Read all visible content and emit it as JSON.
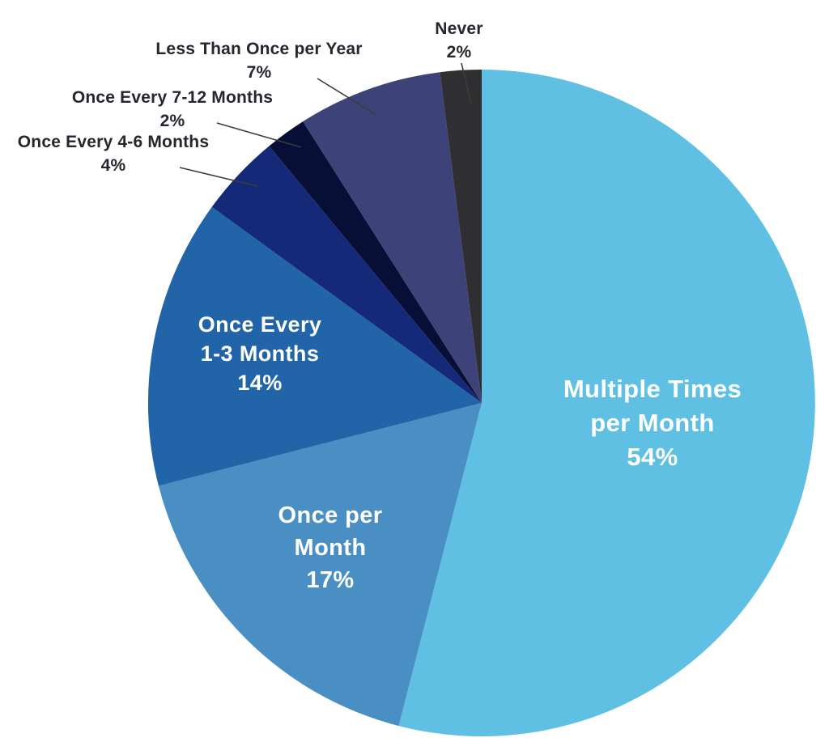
{
  "chart_data": {
    "type": "pie",
    "title": "",
    "direction": "clockwise",
    "start_angle_deg": 0,
    "legend": "none",
    "background_color": "#ffffff",
    "leader_line_color": "#3c3c3c",
    "text_colors": {
      "inside": "#ffffff",
      "outside": "#26262e"
    },
    "slices": [
      {
        "label": "Multiple Times per Month",
        "value": 54,
        "pct_label": "54%",
        "label_lines": [
          "Multiple Times",
          "per Month"
        ],
        "color": "#5fc0e3",
        "label_placement": "inside"
      },
      {
        "label": "Once per Month",
        "value": 17,
        "pct_label": "17%",
        "label_lines": [
          "Once per",
          "Month"
        ],
        "color": "#4a8fc4",
        "label_placement": "inside"
      },
      {
        "label": "Once Every 1-3 Months",
        "value": 14,
        "pct_label": "14%",
        "label_lines": [
          "Once Every",
          "1-3 Months"
        ],
        "color": "#2165a8",
        "label_placement": "inside"
      },
      {
        "label": "Once Every 4-6 Months",
        "value": 4,
        "pct_label": "4%",
        "label_lines": [
          "Once Every 4-6 Months"
        ],
        "color": "#142a78",
        "label_placement": "outside"
      },
      {
        "label": "Once Every 7-12 Months",
        "value": 2,
        "pct_label": "2%",
        "label_lines": [
          "Once Every 7-12 Months"
        ],
        "color": "#070f36",
        "label_placement": "outside"
      },
      {
        "label": "Less Than Once per Year",
        "value": 7,
        "pct_label": "7%",
        "label_lines": [
          "Less Than Once per Year"
        ],
        "color": "#3d4379",
        "label_placement": "outside"
      },
      {
        "label": "Never",
        "value": 2,
        "pct_label": "2%",
        "label_lines": [
          "Never"
        ],
        "color": "#2f2f31",
        "label_placement": "outside"
      }
    ]
  }
}
